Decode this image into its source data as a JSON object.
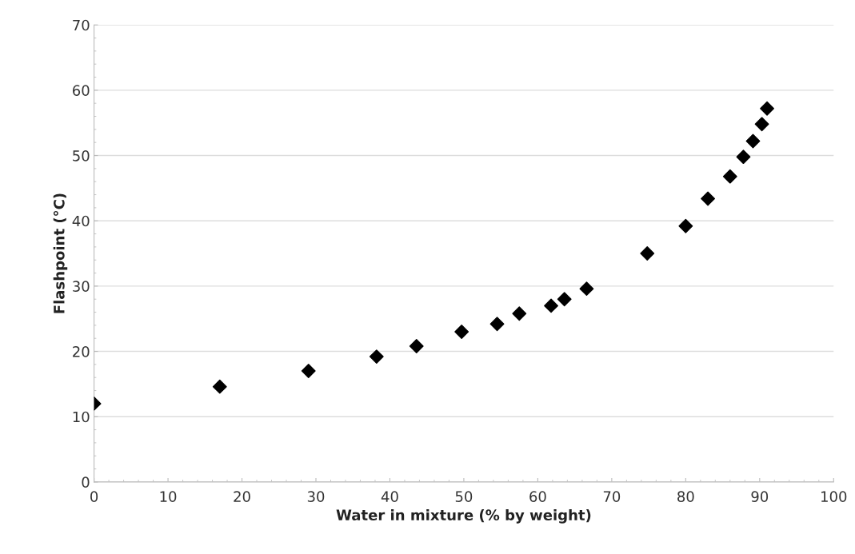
{
  "chart_data": {
    "type": "scatter",
    "xlabel": "Water in mixture (% by weight)",
    "ylabel": "Flashpoint (°C)",
    "x": [
      0,
      17,
      29,
      38.2,
      43.6,
      49.7,
      54.5,
      57.5,
      61.8,
      63.6,
      66.6,
      74.8,
      80,
      83,
      86,
      87.8,
      89.1,
      90.3,
      91
    ],
    "series": [
      {
        "color": "#000000",
        "values": [
          12,
          14.6,
          17,
          19.2,
          20.8,
          23,
          24.2,
          25.8,
          27,
          28,
          29.6,
          35,
          39.2,
          43.4,
          46.8,
          49.8,
          52.2,
          54.8,
          57.2
        ]
      }
    ],
    "xlim": [
      0,
      100
    ],
    "xticks": [
      0,
      10,
      20,
      30,
      40,
      50,
      60,
      70,
      80,
      90,
      100
    ],
    "ylim": [
      0,
      70
    ],
    "yticks": [
      0,
      10,
      20,
      30,
      40,
      50,
      60,
      70
    ],
    "grid": "y",
    "marker": "diamond",
    "legend": false
  }
}
